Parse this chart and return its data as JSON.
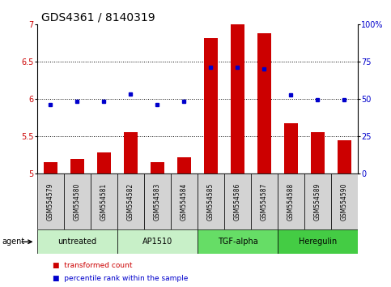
{
  "title": "GDS4361 / 8140319",
  "samples": [
    "GSM554579",
    "GSM554580",
    "GSM554581",
    "GSM554582",
    "GSM554583",
    "GSM554584",
    "GSM554585",
    "GSM554586",
    "GSM554587",
    "GSM554588",
    "GSM554589",
    "GSM554590"
  ],
  "bar_values": [
    5.15,
    5.2,
    5.28,
    5.56,
    5.15,
    5.22,
    6.82,
    7.0,
    6.88,
    5.68,
    5.56,
    5.45
  ],
  "dot_values_left": [
    5.93,
    5.97,
    5.97,
    6.07,
    5.93,
    5.97,
    6.42,
    6.43,
    6.4,
    6.06,
    5.99,
    5.99
  ],
  "ylim_left": [
    5.0,
    7.0
  ],
  "ylim_right": [
    0,
    100
  ],
  "yticks_left": [
    5.0,
    5.5,
    6.0,
    6.5,
    7.0
  ],
  "yticks_right": [
    0,
    25,
    50,
    75,
    100
  ],
  "ytick_labels_right": [
    "0",
    "25",
    "50",
    "75",
    "100%"
  ],
  "bar_color": "#cc0000",
  "dot_color": "#0000cc",
  "bar_bottom": 5.0,
  "groups": [
    {
      "label": "untreated",
      "start": 0,
      "end": 3,
      "color": "#c8f0c8"
    },
    {
      "label": "AP1510",
      "start": 3,
      "end": 6,
      "color": "#c8f0c8"
    },
    {
      "label": "TGF-alpha",
      "start": 6,
      "end": 9,
      "color": "#66dd66"
    },
    {
      "label": "Heregulin",
      "start": 9,
      "end": 12,
      "color": "#44cc44"
    }
  ],
  "legend_bar_label": "transformed count",
  "legend_dot_label": "percentile rank within the sample",
  "agent_label": "agent",
  "background_sample_boxes": "#d3d3d3",
  "title_fontsize": 10,
  "tick_fontsize": 7,
  "sample_fontsize": 5.5,
  "group_fontsize": 7,
  "legend_fontsize": 6.5
}
